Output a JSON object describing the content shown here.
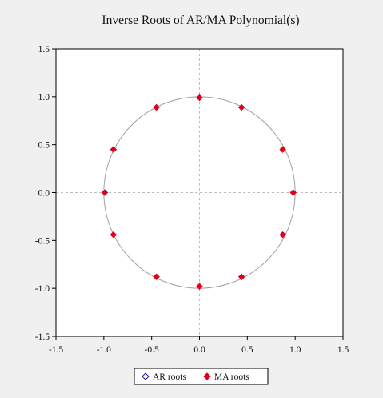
{
  "chart_data": {
    "type": "scatter",
    "title": "Inverse Roots of AR/MA Polynomial(s)",
    "xlim": [
      -1.5,
      1.5
    ],
    "ylim": [
      -1.5,
      1.5
    ],
    "x_ticks": [
      "-1.5",
      "-1.0",
      "-0.5",
      "0.0",
      "0.5",
      "1.0",
      "1.5"
    ],
    "y_ticks": [
      "1.5",
      "1.0",
      "0.5",
      "0.0",
      "-0.5",
      "-1.0",
      "-1.5"
    ],
    "x_tick_values": [
      -1.5,
      -1.0,
      -0.5,
      0.0,
      0.5,
      1.0,
      1.5
    ],
    "y_tick_values": [
      1.5,
      1.0,
      0.5,
      0.0,
      -0.5,
      -1.0,
      -1.5
    ],
    "unit_circle": true,
    "zero_lines": true,
    "legend_position": "bottom-center",
    "series": [
      {
        "name": "AR roots",
        "marker": "hollow-diamond",
        "color": "#1f1f8f",
        "points": []
      },
      {
        "name": "MA roots",
        "marker": "filled-diamond",
        "color": "#e0001a",
        "points": [
          {
            "x": 0.98,
            "y": 0.0
          },
          {
            "x": 0.87,
            "y": 0.45
          },
          {
            "x": 0.44,
            "y": 0.89
          },
          {
            "x": 0.0,
            "y": 0.99
          },
          {
            "x": -0.45,
            "y": 0.89
          },
          {
            "x": -0.9,
            "y": 0.45
          },
          {
            "x": -0.99,
            "y": 0.0
          },
          {
            "x": -0.9,
            "y": -0.44
          },
          {
            "x": -0.45,
            "y": -0.88
          },
          {
            "x": 0.0,
            "y": -0.98
          },
          {
            "x": 0.44,
            "y": -0.88
          },
          {
            "x": 0.87,
            "y": -0.44
          }
        ]
      }
    ]
  },
  "colors": {
    "background": "#f0f0f0",
    "plot_area": "#ffffff",
    "circle": "#a0a0a0",
    "zero_line": "#bdbdbd"
  }
}
